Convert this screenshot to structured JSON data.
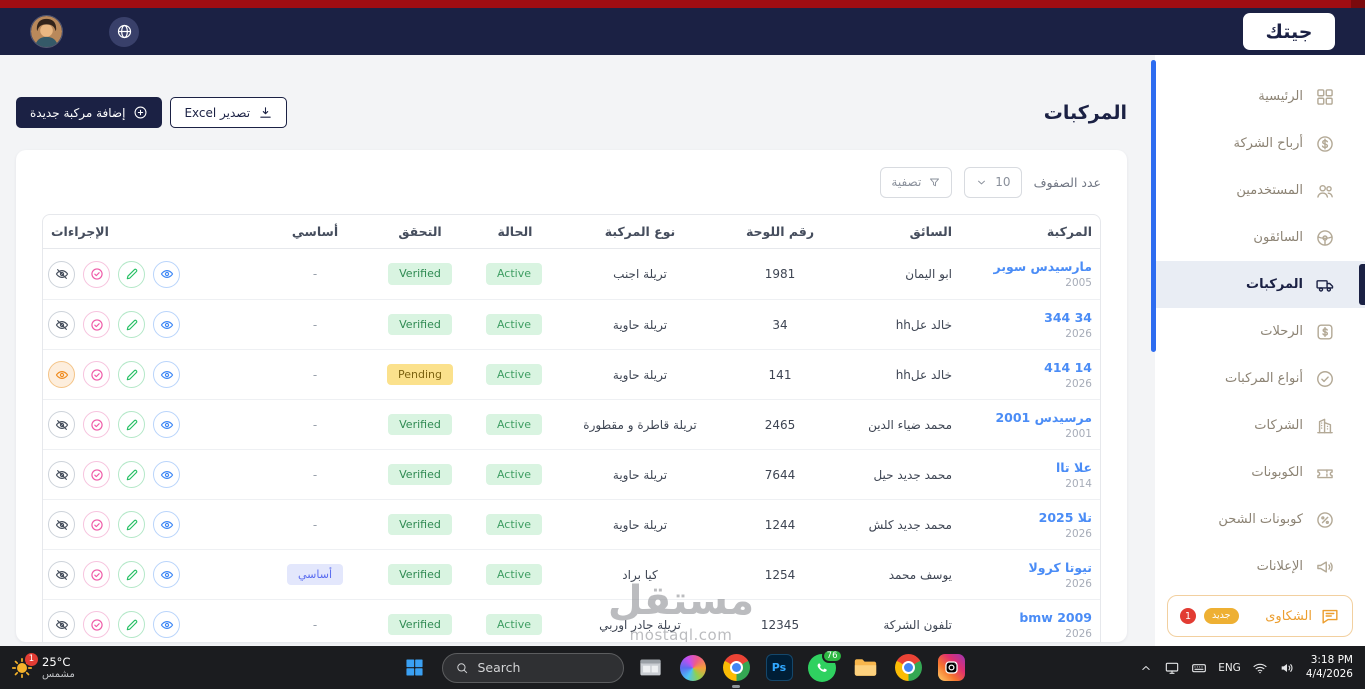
{
  "header": {
    "logo": "جيتك"
  },
  "sidebar": {
    "items": [
      {
        "id": "home",
        "icon": "grid",
        "label": "الرئيسية"
      },
      {
        "id": "company-profits",
        "icon": "profits",
        "label": "أرباح الشركة"
      },
      {
        "id": "users",
        "icon": "users",
        "label": "المستخدمين"
      },
      {
        "id": "drivers",
        "icon": "driver",
        "label": "السائقون"
      },
      {
        "id": "vehicles",
        "icon": "truck",
        "label": "المركبات",
        "active": true
      },
      {
        "id": "trips",
        "icon": "trips",
        "label": "الرحلات"
      },
      {
        "id": "vehicle-types",
        "icon": "vehicle-types",
        "label": "أنواع المركبات"
      },
      {
        "id": "companies",
        "icon": "companies",
        "label": "الشركات"
      },
      {
        "id": "coupons",
        "icon": "coupon",
        "label": "الكوبونات"
      },
      {
        "id": "shipping-coupons",
        "icon": "shipping-coupon",
        "label": "كوبونات الشحن"
      },
      {
        "id": "ads",
        "icon": "ads",
        "label": "الإعلانات"
      },
      {
        "id": "complaints",
        "icon": "complaints",
        "label": "الشكاوى",
        "alert": true,
        "badge_new": "جديد",
        "badge_count": "1"
      }
    ]
  },
  "page": {
    "title": "المركبات",
    "add_button": "إضافة مركبة جديدة",
    "export_button": "تصدير Excel",
    "rows_count_label": "عدد الصفوف",
    "rows_per_page": "10",
    "filter_button": "تصفية"
  },
  "table": {
    "headers": [
      "المركبة",
      "السائق",
      "رقم اللوحة",
      "نوع المركبة",
      "الحالة",
      "التحقق",
      "أساسي",
      "الإجراءات"
    ],
    "rows": [
      {
        "name": "مارسيدس سوبر",
        "year": "2005",
        "driver": "ابو اليمان",
        "plate": "1981",
        "type": "تريلة اجنب",
        "status": "Active",
        "verification": "Verified",
        "primary": "-",
        "actions": [
          "hide",
          "approve",
          "edit",
          "view"
        ]
      },
      {
        "name": "34 344",
        "year": "2026",
        "driver": "خالد علhh",
        "plate": "34",
        "type": "تريلة حاوية",
        "status": "Active",
        "verification": "Verified",
        "primary": "-",
        "actions": [
          "hide",
          "approve",
          "edit",
          "view"
        ]
      },
      {
        "name": "14 414",
        "year": "2026",
        "driver": "خالد علhh",
        "plate": "141",
        "type": "تريلة حاوية",
        "status": "Active",
        "verification": "Pending",
        "primary": "-",
        "actions": [
          "reveal",
          "approve",
          "edit",
          "view"
        ]
      },
      {
        "name": "مرسيدس 2001",
        "year": "2001",
        "driver": "محمد ضياء الدين",
        "plate": "2465",
        "type": "تريلة قاطرة و مقطورة",
        "status": "Active",
        "verification": "Verified",
        "primary": "-",
        "actions": [
          "hide",
          "approve",
          "edit",
          "view"
        ]
      },
      {
        "name": "علا تاا",
        "year": "2014",
        "driver": "محمد جديد حيل",
        "plate": "7644",
        "type": "تريلة حاوية",
        "status": "Active",
        "verification": "Verified",
        "primary": "-",
        "actions": [
          "hide",
          "approve",
          "edit",
          "view"
        ]
      },
      {
        "name": "تلا 2025",
        "year": "2026",
        "driver": "محمد جديد كلش",
        "plate": "1244",
        "type": "تريلة حاوية",
        "status": "Active",
        "verification": "Verified",
        "primary": "-",
        "actions": [
          "hide",
          "approve",
          "edit",
          "view"
        ]
      },
      {
        "name": "تيوتا كرولا",
        "year": "2026",
        "driver": "يوسف محمد",
        "plate": "1254",
        "type": "كيا براد",
        "status": "Active",
        "verification": "Verified",
        "primary": "أساسي",
        "actions": [
          "hide",
          "approve",
          "edit",
          "view"
        ]
      },
      {
        "name": "bmw 2009",
        "year": "2026",
        "driver": "تلفون الشركة",
        "plate": "12345",
        "type": "تريلة جادر اوربي",
        "status": "Active",
        "verification": "Verified",
        "primary": "-",
        "actions": [
          "hide",
          "approve",
          "edit",
          "view"
        ]
      }
    ]
  },
  "watermark": {
    "title": "مستقل",
    "subtitle": "mostaql.com"
  },
  "taskbar": {
    "weather": {
      "temp": "25°C",
      "condition": "مشمس",
      "badge": "1"
    },
    "search_placeholder": "Search",
    "apps": [
      {
        "id": "window-preview",
        "kind": "window"
      },
      {
        "id": "colorful-sphere",
        "kind": "sphere"
      },
      {
        "id": "chrome",
        "kind": "chrome",
        "active": true
      },
      {
        "id": "photoshop",
        "kind": "photoshop",
        "label": "Ps"
      },
      {
        "id": "whatsapp",
        "kind": "whatsapp",
        "badge": "76"
      },
      {
        "id": "file-explorer",
        "kind": "folder"
      },
      {
        "id": "chrome-2",
        "kind": "chrome"
      },
      {
        "id": "instagram",
        "kind": "instagram"
      }
    ],
    "tray": {
      "language": "ENG",
      "time": "3:18 PM",
      "date": "4/4/2026"
    }
  },
  "colors": {
    "brand_navy": "#1b2144",
    "top_strip_red": "#a00d12",
    "link_blue": "#4a8cf6",
    "active_green": "#3f9e63",
    "pending_yellow": "#fbe18c",
    "complaints_orange": "#ec9e2e",
    "sidebar_scrollbar_blue": "#2d6cf0"
  }
}
